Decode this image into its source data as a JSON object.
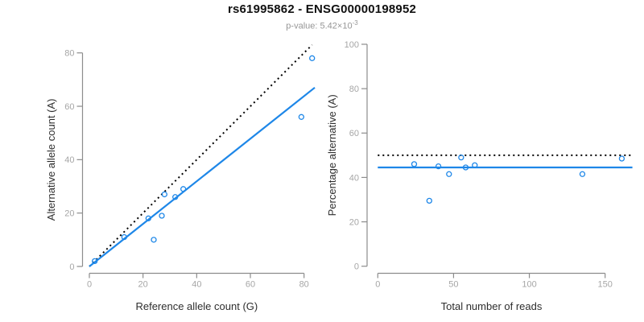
{
  "header": {
    "title": "rs61995862 - ENSG00000198952",
    "subtitle_prefix": "p-value: 5.42×10",
    "subtitle_exponent": "-3"
  },
  "colors": {
    "accent_blue": "#1E87E8",
    "dotted_black": "#000000",
    "axis_line": "#8C8C8C",
    "tick_label": "#A6A6A6",
    "axis_title": "#2E2E2E",
    "title": "#111111",
    "subtitle": "#969696"
  },
  "chart_data": [
    {
      "type": "scatter",
      "name": "allele-count",
      "xlabel": "Reference allele count (G)",
      "ylabel": "Alternative allele count (A)",
      "xlim": [
        0,
        84
      ],
      "ylim": [
        0,
        83
      ],
      "xticks": [
        0,
        20,
        40,
        60,
        80
      ],
      "yticks": [
        0,
        20,
        40,
        60,
        80
      ],
      "grid": false,
      "point_style": {
        "shape": "open-circle",
        "color": "#1E87E8",
        "radius": 3
      },
      "points": [
        [
          2,
          2
        ],
        [
          13,
          11
        ],
        [
          22,
          18
        ],
        [
          24,
          10
        ],
        [
          27,
          19
        ],
        [
          28,
          27
        ],
        [
          32,
          26
        ],
        [
          35,
          29
        ],
        [
          79,
          56
        ],
        [
          83,
          78
        ]
      ],
      "lines": [
        {
          "name": "expected-line",
          "style": "dotted",
          "color": "#000000",
          "from": [
            0,
            0
          ],
          "to": [
            83,
            83
          ]
        },
        {
          "name": "fit-line",
          "style": "solid",
          "color": "#1E87E8",
          "from": [
            0,
            0
          ],
          "to": [
            84,
            67
          ]
        }
      ]
    },
    {
      "type": "scatter",
      "name": "percentage-alternative",
      "xlabel": "Total number of reads",
      "ylabel": "Percentage alternative (A)",
      "xlim": [
        0,
        168
      ],
      "ylim": [
        0,
        100
      ],
      "xticks": [
        0,
        50,
        100,
        150
      ],
      "yticks": [
        0,
        20,
        40,
        60,
        80,
        100
      ],
      "grid": false,
      "point_style": {
        "shape": "open-circle",
        "color": "#1E87E8",
        "radius": 3
      },
      "points": [
        [
          24,
          46
        ],
        [
          34,
          29.5
        ],
        [
          40,
          45
        ],
        [
          47,
          41.5
        ],
        [
          55,
          49
        ],
        [
          58,
          44.5
        ],
        [
          64,
          45.5
        ],
        [
          135,
          41.5
        ],
        [
          161,
          48.5
        ]
      ],
      "lines": [
        {
          "name": "expected-line",
          "style": "dotted",
          "color": "#000000",
          "from": [
            0,
            50
          ],
          "to": [
            168,
            50
          ]
        },
        {
          "name": "fit-line",
          "style": "solid",
          "color": "#1E87E8",
          "from": [
            0,
            44.5
          ],
          "to": [
            168,
            44.5
          ]
        }
      ]
    }
  ]
}
